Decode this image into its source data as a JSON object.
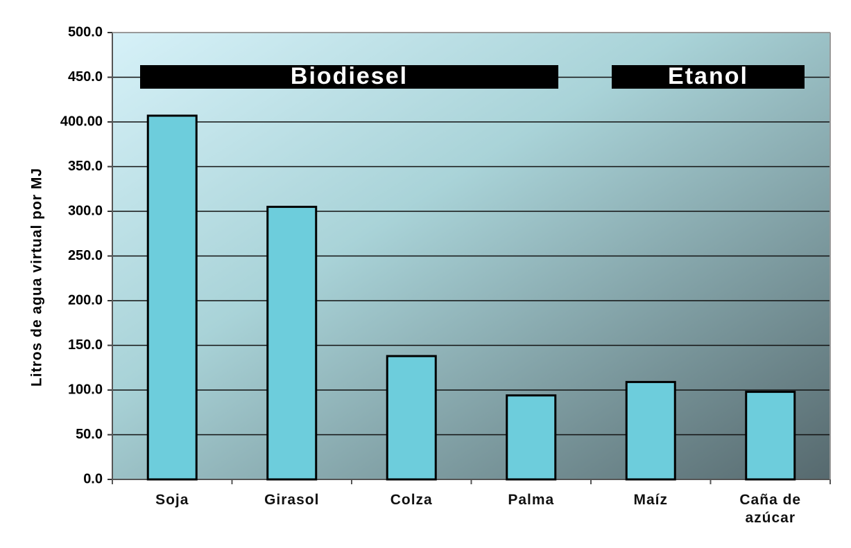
{
  "chart_data": {
    "type": "bar",
    "y_label": "Litros de agua virtual por MJ",
    "categories": [
      "Soja",
      "Girasol",
      "Colza",
      "Palma",
      "Maíz",
      "Caña de azúcar"
    ],
    "values": [
      407,
      305,
      138,
      94,
      109,
      98
    ],
    "color": "#6dcddc",
    "annotations": [
      "Biodiesel",
      "Etanol"
    ],
    "ylim": [
      0,
      500
    ],
    "yticks": [
      {
        "value": 0,
        "label": "0.0"
      },
      {
        "value": 50,
        "label": "50.0"
      },
      {
        "value": 100,
        "label": "100.0"
      },
      {
        "value": 150,
        "label": "150.0"
      },
      {
        "value": 200,
        "label": "200.0"
      },
      {
        "value": 250,
        "label": "250.0"
      },
      {
        "value": 300,
        "label": "300.0"
      },
      {
        "value": 350,
        "label": "350.0"
      },
      {
        "value": 400,
        "label": "400.00"
      },
      {
        "value": 450,
        "label": "450.0"
      },
      {
        "value": 500,
        "label": "500.0"
      }
    ],
    "grid": true
  }
}
